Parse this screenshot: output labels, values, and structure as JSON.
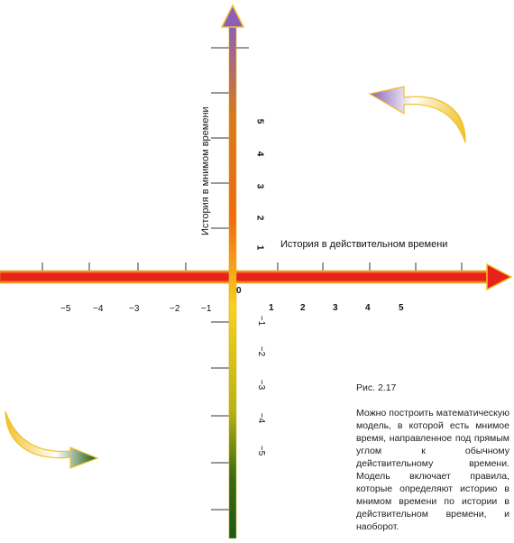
{
  "axes": {
    "real_axis_label": "История в действительном времени",
    "imag_axis_label": "История в мнимом времени",
    "origin_label": "0"
  },
  "real_ticks": {
    "negative": [
      "−5",
      "−4",
      "−3",
      "−2",
      "−1"
    ],
    "positive": [
      "1",
      "2",
      "3",
      "4",
      "5"
    ]
  },
  "imag_ticks": {
    "positive": [
      "1",
      "2",
      "3",
      "4",
      "5"
    ],
    "negative": [
      "−1",
      "−2",
      "−3",
      "−4",
      "−5"
    ]
  },
  "caption": {
    "figure": "Рис. 2.17",
    "text": "Можно построить математическую модель, в которой есть мнимое время, направленное под прямым углом к обычному действительному времени. Модель включает правила, которые определяют историю в мнимом времени по истории в действительном времени, и наоборот."
  },
  "colors": {
    "real_arrow": "#e8221a",
    "real_arrow_edge": "#f1c12a",
    "imag_top": "#8b5fb8",
    "imag_mid": "#f7d21c",
    "imag_bottom": "#1d5a14",
    "curved_arrow_top": "#8b5fb8",
    "curved_arrow_bottom": "#1d5a14"
  }
}
